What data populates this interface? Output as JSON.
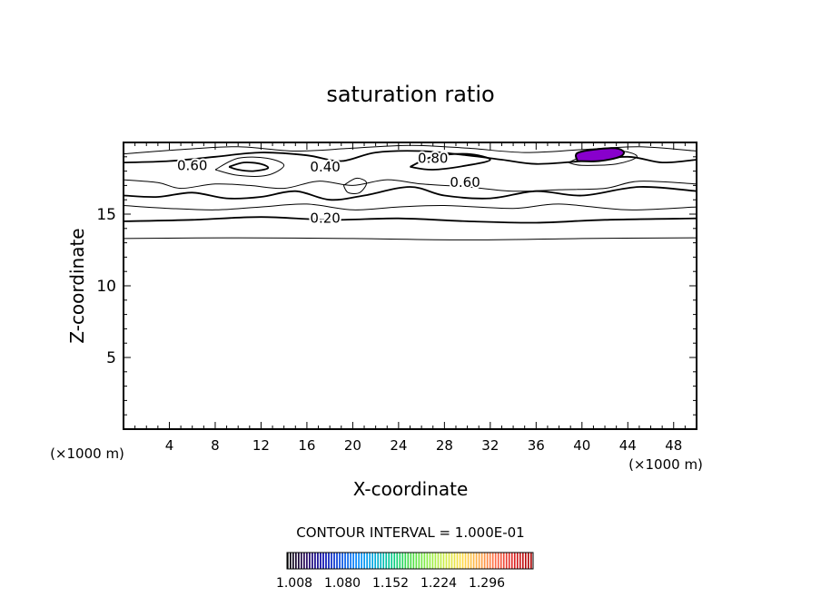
{
  "chart_data": {
    "type": "contour",
    "title": "saturation ratio",
    "xlabel": "X-coordinate",
    "ylabel": "Z-coordinate",
    "x_unit": "(×1000 m)",
    "z_unit": "(×1000 m)",
    "xlim": [
      0,
      50
    ],
    "ylim": [
      0,
      20
    ],
    "x_ticks": [
      4,
      8,
      12,
      16,
      20,
      24,
      28,
      32,
      36,
      40,
      44,
      48
    ],
    "y_ticks": [
      5,
      10,
      15
    ],
    "contour_interval_text": "CONTOUR INTERVAL = 1.000E-01",
    "contour_labels": [
      {
        "text": "0.60",
        "x": 6,
        "z": 18.4
      },
      {
        "text": "0.40",
        "x": 17.6,
        "z": 18.3
      },
      {
        "text": "0.80",
        "x": 27,
        "z": 18.9
      },
      {
        "text": "0.60",
        "x": 29.8,
        "z": 17.2
      },
      {
        "text": "0.20",
        "x": 17.6,
        "z": 14.7
      }
    ],
    "contour_lines": [
      {
        "level": 0.1,
        "points": [
          [
            0,
            13.3
          ],
          [
            10,
            13.35
          ],
          [
            20,
            13.3
          ],
          [
            30,
            13.2
          ],
          [
            40,
            13.3
          ],
          [
            50,
            13.35
          ]
        ]
      },
      {
        "level": 0.2,
        "points": [
          [
            0,
            14.5
          ],
          [
            6,
            14.6
          ],
          [
            12,
            14.8
          ],
          [
            18,
            14.6
          ],
          [
            24,
            14.7
          ],
          [
            30,
            14.5
          ],
          [
            36,
            14.4
          ],
          [
            42,
            14.6
          ],
          [
            50,
            14.7
          ]
        ]
      },
      {
        "level": 0.3,
        "points": [
          [
            0,
            15.6
          ],
          [
            4,
            15.4
          ],
          [
            8,
            15.3
          ],
          [
            12,
            15.5
          ],
          [
            16,
            15.7
          ],
          [
            20,
            15.3
          ],
          [
            24,
            15.5
          ],
          [
            28,
            15.6
          ],
          [
            34,
            15.4
          ],
          [
            38,
            15.7
          ],
          [
            44,
            15.3
          ],
          [
            50,
            15.5
          ]
        ]
      },
      {
        "level": 0.4,
        "points": [
          [
            0,
            16.3
          ],
          [
            3,
            16.2
          ],
          [
            6,
            16.5
          ],
          [
            9,
            16.1
          ],
          [
            12,
            16.2
          ],
          [
            15,
            16.6
          ],
          [
            18,
            16.0
          ],
          [
            21,
            16.3
          ],
          [
            25,
            16.9
          ],
          [
            28,
            16.3
          ],
          [
            32,
            16.1
          ],
          [
            36,
            16.6
          ],
          [
            40,
            16.3
          ],
          [
            45,
            16.9
          ],
          [
            50,
            16.6
          ]
        ]
      },
      {
        "level": 0.5,
        "points": [
          [
            0,
            17.4
          ],
          [
            3,
            17.2
          ],
          [
            5,
            16.8
          ],
          [
            8,
            17.1
          ],
          [
            11,
            17.0
          ],
          [
            14,
            16.8
          ],
          [
            17,
            17.3
          ],
          [
            20,
            17.0
          ],
          [
            23,
            17.4
          ],
          [
            26,
            17.1
          ],
          [
            30,
            16.9
          ],
          [
            34,
            16.6
          ],
          [
            38,
            16.7
          ],
          [
            42,
            16.8
          ],
          [
            45,
            17.3
          ],
          [
            50,
            17.1
          ]
        ]
      },
      {
        "level": 0.6,
        "points": [
          [
            0,
            18.6
          ],
          [
            4,
            18.7
          ],
          [
            8,
            19.0
          ],
          [
            12,
            19.3
          ],
          [
            16,
            19.1
          ],
          [
            19,
            18.7
          ],
          [
            22,
            19.3
          ],
          [
            26,
            19.4
          ],
          [
            30,
            19.1
          ],
          [
            33,
            18.8
          ],
          [
            36,
            18.5
          ],
          [
            40,
            18.7
          ],
          [
            44,
            19.0
          ],
          [
            47,
            18.6
          ],
          [
            50,
            18.8
          ]
        ]
      },
      {
        "level": 0.7,
        "points": [
          [
            0,
            19.2
          ],
          [
            5,
            19.5
          ],
          [
            10,
            19.7
          ],
          [
            15,
            19.4
          ],
          [
            20,
            19.6
          ],
          [
            25,
            19.8
          ],
          [
            30,
            19.6
          ],
          [
            35,
            19.3
          ],
          [
            40,
            19.5
          ],
          [
            45,
            19.7
          ],
          [
            50,
            19.4
          ]
        ]
      },
      {
        "level": 0.6,
        "points": [
          [
            9.2,
            18.3
          ],
          [
            10.5,
            18.6
          ],
          [
            12,
            18.5
          ],
          [
            12.6,
            18.2
          ],
          [
            11.3,
            18.0
          ],
          [
            10,
            18.1
          ],
          [
            9.2,
            18.3
          ]
        ]
      },
      {
        "level": 0.7,
        "points": [
          [
            8,
            18.1
          ],
          [
            10,
            18.9
          ],
          [
            12.5,
            18.9
          ],
          [
            14,
            18.4
          ],
          [
            12.5,
            17.7
          ],
          [
            10,
            17.7
          ],
          [
            8,
            18.1
          ]
        ]
      },
      {
        "level": 0.5,
        "points": [
          [
            19.2,
            17.0
          ],
          [
            20.3,
            17.5
          ],
          [
            21.2,
            17.2
          ],
          [
            20.6,
            16.5
          ],
          [
            19.6,
            16.5
          ],
          [
            19.2,
            17.0
          ]
        ]
      },
      {
        "level": 0.8,
        "points": [
          [
            25,
            18.3
          ],
          [
            27,
            19.0
          ],
          [
            30,
            19.2
          ],
          [
            32,
            18.8
          ],
          [
            30,
            18.4
          ],
          [
            27,
            18.1
          ],
          [
            25,
            18.3
          ]
        ]
      },
      {
        "level": 0.9,
        "points": [
          [
            38.8,
            18.6
          ],
          [
            41,
            19.3
          ],
          [
            43.5,
            19.4
          ],
          [
            44.8,
            19.0
          ],
          [
            43,
            18.5
          ],
          [
            40,
            18.4
          ],
          [
            38.8,
            18.6
          ]
        ]
      }
    ],
    "filled_region": {
      "color": "#8800cc",
      "points": [
        [
          39.6,
          18.7
        ],
        [
          39.7,
          19.3
        ],
        [
          42.5,
          19.6
        ],
        [
          43.6,
          19.4
        ],
        [
          43.3,
          19.0
        ],
        [
          41.5,
          18.7
        ],
        [
          39.6,
          18.7
        ]
      ]
    },
    "colorbar": {
      "tick_labels": [
        "1.008",
        "1.080",
        "1.152",
        "1.224",
        "1.296"
      ],
      "range": [
        1.008,
        1.296
      ],
      "colors": [
        "#000000",
        "#220055",
        "#0000aa",
        "#0044dd",
        "#0088ff",
        "#00aadd",
        "#00cc88",
        "#44dd44",
        "#88ee44",
        "#ccee44",
        "#ffdd44",
        "#ffaa44",
        "#ff6644",
        "#dd2222",
        "#aa0000"
      ]
    }
  }
}
